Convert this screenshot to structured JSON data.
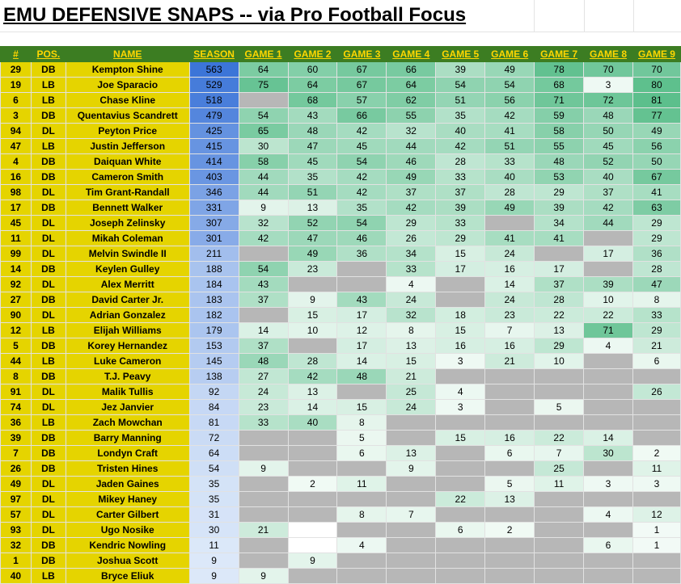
{
  "title": "EMU DEFENSIVE SNAPS -- via Pro Football Focus",
  "headers": [
    "#",
    "POS.",
    "NAME",
    "SEASON",
    "GAME 1",
    "GAME 2",
    "GAME 3",
    "GAME 4",
    "GAME 5",
    "GAME 6",
    "GAME 7",
    "GAME 8",
    "GAME 9"
  ],
  "colors": {
    "header_bg": "#3c7d22",
    "header_text": "#ffd700",
    "identity_bg": "#e5d400",
    "did_not_play": "#b7b7b7",
    "season_scale": [
      "#dce8f9",
      "#3c75d8"
    ],
    "game_scale": [
      "#f4fbf7",
      "#5cbf8c"
    ]
  },
  "rows": [
    {
      "num": "29",
      "pos": "DB",
      "name": "Kempton Shine",
      "season": 563,
      "games": [
        64,
        60,
        67,
        66,
        39,
        49,
        78,
        70,
        70
      ]
    },
    {
      "num": "19",
      "pos": "LB",
      "name": "Joe Sparacio",
      "season": 529,
      "games": [
        75,
        64,
        67,
        64,
        54,
        54,
        68,
        3,
        80
      ]
    },
    {
      "num": "6",
      "pos": "LB",
      "name": "Chase Kline",
      "season": 518,
      "games": [
        null,
        68,
        57,
        62,
        51,
        56,
        71,
        72,
        81
      ]
    },
    {
      "num": "3",
      "pos": "DB",
      "name": "Quentavius Scandrett",
      "season": 479,
      "games": [
        54,
        43,
        66,
        55,
        35,
        42,
        59,
        48,
        77
      ]
    },
    {
      "num": "94",
      "pos": "DL",
      "name": "Peyton Price",
      "season": 425,
      "games": [
        65,
        48,
        42,
        32,
        40,
        41,
        58,
        50,
        49
      ]
    },
    {
      "num": "47",
      "pos": "LB",
      "name": "Justin Jefferson",
      "season": 415,
      "games": [
        30,
        47,
        45,
        44,
        42,
        51,
        55,
        45,
        56
      ]
    },
    {
      "num": "4",
      "pos": "DB",
      "name": "Daiquan White",
      "season": 414,
      "games": [
        58,
        45,
        54,
        46,
        28,
        33,
        48,
        52,
        50
      ]
    },
    {
      "num": "16",
      "pos": "DB",
      "name": "Cameron Smith",
      "season": 403,
      "games": [
        44,
        35,
        42,
        49,
        33,
        40,
        53,
        40,
        67
      ]
    },
    {
      "num": "98",
      "pos": "DL",
      "name": "Tim Grant-Randall",
      "season": 346,
      "games": [
        44,
        51,
        42,
        37,
        37,
        28,
        29,
        37,
        41
      ]
    },
    {
      "num": "17",
      "pos": "DB",
      "name": "Bennett Walker",
      "season": 331,
      "games": [
        9,
        13,
        35,
        42,
        39,
        49,
        39,
        42,
        63
      ]
    },
    {
      "num": "45",
      "pos": "DL",
      "name": "Joseph Zelinsky",
      "season": 307,
      "games": [
        32,
        52,
        54,
        29,
        33,
        null,
        34,
        44,
        29
      ]
    },
    {
      "num": "11",
      "pos": "DL",
      "name": "Mikah Coleman",
      "season": 301,
      "games": [
        42,
        47,
        46,
        26,
        29,
        41,
        41,
        null,
        29
      ]
    },
    {
      "num": "99",
      "pos": "DL",
      "name": "Melvin Swindle II",
      "season": 211,
      "games": [
        null,
        49,
        36,
        34,
        15,
        24,
        null,
        17,
        36
      ]
    },
    {
      "num": "14",
      "pos": "DB",
      "name": "Keylen Gulley",
      "season": 188,
      "games": [
        54,
        23,
        null,
        33,
        17,
        16,
        17,
        null,
        28
      ]
    },
    {
      "num": "92",
      "pos": "DL",
      "name": "Alex Merritt",
      "season": 184,
      "games": [
        43,
        null,
        null,
        4,
        null,
        14,
        37,
        39,
        47
      ]
    },
    {
      "num": "27",
      "pos": "DB",
      "name": "David Carter Jr.",
      "season": 183,
      "games": [
        37,
        9,
        43,
        24,
        null,
        24,
        28,
        10,
        8
      ]
    },
    {
      "num": "90",
      "pos": "DL",
      "name": "Adrian Gonzalez",
      "season": 182,
      "games": [
        null,
        15,
        17,
        32,
        18,
        23,
        22,
        22,
        33
      ]
    },
    {
      "num": "12",
      "pos": "LB",
      "name": "Elijah Williams",
      "season": 179,
      "games": [
        14,
        10,
        12,
        8,
        15,
        7,
        13,
        71,
        29
      ]
    },
    {
      "num": "5",
      "pos": "DB",
      "name": "Korey Hernandez",
      "season": 153,
      "games": [
        37,
        null,
        17,
        13,
        16,
        16,
        29,
        4,
        21
      ]
    },
    {
      "num": "44",
      "pos": "LB",
      "name": "Luke Cameron",
      "season": 145,
      "games": [
        48,
        28,
        14,
        15,
        3,
        21,
        10,
        null,
        6
      ]
    },
    {
      "num": "8",
      "pos": "DB",
      "name": "T.J. Peavy",
      "season": 138,
      "games": [
        27,
        42,
        48,
        21,
        null,
        null,
        null,
        null,
        null
      ]
    },
    {
      "num": "91",
      "pos": "DL",
      "name": "Malik Tullis",
      "season": 92,
      "games": [
        24,
        13,
        null,
        25,
        4,
        null,
        null,
        null,
        26
      ]
    },
    {
      "num": "74",
      "pos": "DL",
      "name": "Jez Janvier",
      "season": 84,
      "games": [
        23,
        14,
        15,
        24,
        3,
        null,
        5,
        null,
        null
      ]
    },
    {
      "num": "36",
      "pos": "LB",
      "name": "Zach Mowchan",
      "season": 81,
      "games": [
        33,
        40,
        8,
        null,
        null,
        null,
        null,
        null,
        null
      ]
    },
    {
      "num": "39",
      "pos": "DB",
      "name": "Barry Manning",
      "season": 72,
      "games": [
        null,
        null,
        5,
        null,
        15,
        16,
        22,
        14,
        null
      ]
    },
    {
      "num": "7",
      "pos": "DB",
      "name": "Londyn Craft",
      "season": 64,
      "games": [
        null,
        null,
        6,
        13,
        null,
        6,
        7,
        30,
        2
      ]
    },
    {
      "num": "26",
      "pos": "DB",
      "name": "Tristen Hines",
      "season": 54,
      "games": [
        9,
        null,
        null,
        9,
        null,
        null,
        25,
        null,
        11
      ]
    },
    {
      "num": "49",
      "pos": "DL",
      "name": "Jaden Gaines",
      "season": 35,
      "games": [
        null,
        2,
        11,
        null,
        null,
        5,
        11,
        3,
        3
      ]
    },
    {
      "num": "97",
      "pos": "DL",
      "name": "Mikey Haney",
      "season": 35,
      "games": [
        null,
        null,
        null,
        null,
        22,
        13,
        null,
        null,
        null
      ]
    },
    {
      "num": "57",
      "pos": "DL",
      "name": "Carter Gilbert",
      "season": 31,
      "games": [
        null,
        null,
        8,
        7,
        null,
        null,
        null,
        4,
        12
      ]
    },
    {
      "num": "93",
      "pos": "DL",
      "name": "Ugo Nosike",
      "season": 30,
      "games": [
        21,
        null,
        null,
        null,
        6,
        2,
        null,
        null,
        1
      ]
    },
    {
      "num": "32",
      "pos": "DB",
      "name": "Kendric Nowling",
      "season": 11,
      "games": [
        null,
        null,
        4,
        null,
        null,
        null,
        null,
        6,
        1
      ]
    },
    {
      "num": "1",
      "pos": "DB",
      "name": "Joshua Scott",
      "season": 9,
      "games": [
        null,
        9,
        null,
        null,
        null,
        null,
        null,
        null,
        null
      ]
    },
    {
      "num": "40",
      "pos": "LB",
      "name": "Bryce Eliuk",
      "season": 9,
      "games": [
        9,
        null,
        null,
        null,
        null,
        null,
        null,
        null,
        null
      ]
    }
  ],
  "blank_cells": {
    "Alex Merritt": [
      4
    ],
    "Londyn Craft": [
      3
    ],
    "Jaden Gaines": [
      3
    ],
    "Ugo Nosike": [
      2
    ],
    "Carter Gilbert": [
      4
    ],
    "Kendric Nowling": [
      2
    ],
    "Joshua Scott": [
      2
    ],
    "Bryce Eliuk": [
      1
    ]
  }
}
